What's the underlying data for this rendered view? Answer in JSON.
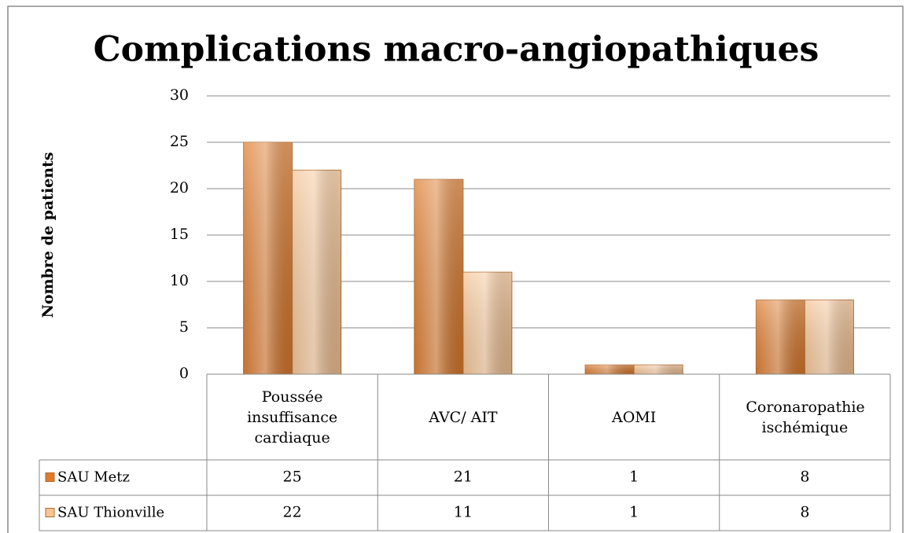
{
  "chart_data": {
    "type": "bar",
    "title": "Complications macro-angiopathiques",
    "y_label": "Nombre de patients",
    "categories": [
      "Poussée insuffisance cardiaque",
      "AVC/ AIT",
      "AOMI",
      "Coronaropathie ischémique"
    ],
    "series": [
      {
        "name": "SAU Metz",
        "color": "#dd7a2c",
        "values": [
          25,
          21,
          1,
          8
        ]
      },
      {
        "name": "SAU Thionville",
        "color": "#f6c596",
        "values": [
          22,
          11,
          1,
          8
        ]
      }
    ],
    "ylim": [
      0,
      30
    ],
    "yticks": [
      0,
      5,
      10,
      15,
      20,
      25,
      30
    ],
    "grid": true,
    "data_table": true
  }
}
